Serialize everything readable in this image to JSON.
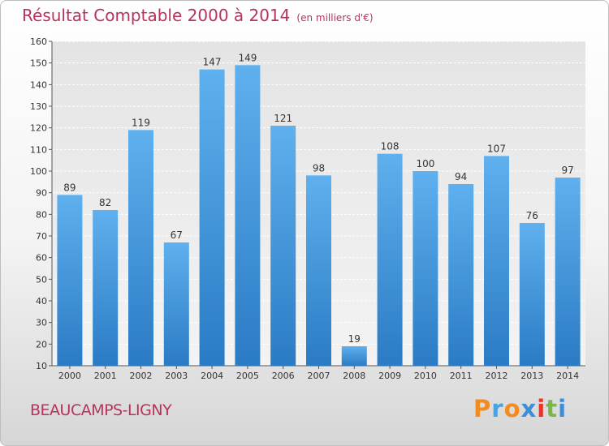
{
  "title": "Résultat Comptable 2000 à 2014",
  "subtitle": "(en milliers d'€)",
  "place": "BEAUCAMPS-LIGNY",
  "logo": {
    "letters": [
      "P",
      "r",
      "o",
      "x",
      "i",
      "t",
      "i"
    ],
    "colors": [
      "#f28c1e",
      "#4aa3df",
      "#f28c1e",
      "#3a8fd8",
      "#e8332a",
      "#7ab648",
      "#3a8fd8"
    ]
  },
  "colors": {
    "bar": "#3d8fd6",
    "bar_light": "#5fb0ee",
    "title": "#b8325a"
  },
  "chart_data": {
    "type": "bar",
    "categories": [
      "2000",
      "2001",
      "2002",
      "2003",
      "2004",
      "2005",
      "2006",
      "2007",
      "2008",
      "2009",
      "2010",
      "2011",
      "2012",
      "2013",
      "2014"
    ],
    "values": [
      89,
      82,
      119,
      67,
      147,
      149,
      121,
      98,
      19,
      108,
      100,
      94,
      107,
      76,
      97
    ],
    "ylim": [
      10,
      160
    ],
    "yticks": [
      10,
      20,
      30,
      40,
      50,
      60,
      70,
      80,
      90,
      100,
      110,
      120,
      130,
      140,
      150,
      160
    ],
    "grid": true,
    "legend": "none"
  }
}
